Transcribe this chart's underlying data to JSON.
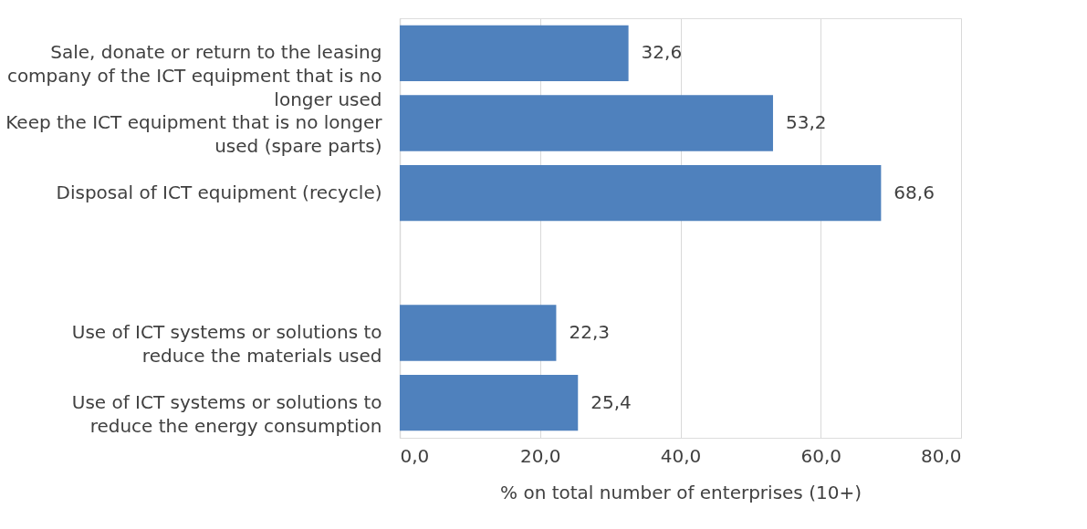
{
  "chart_data": {
    "type": "bar",
    "orientation": "horizontal",
    "xlabel": "% on total number of enterprises (10+)",
    "categories": [
      "Sale, donate or return to the leasing company of the ICT equipment that is no longer used",
      "Keep the ICT equipment that is no longer used (spare parts)",
      "Disposal of ICT equipment (recycle)",
      null,
      "Use of ICT systems or solutions to reduce the materials used",
      "Use of ICT systems or solutions to reduce the energy consumption"
    ],
    "values": [
      32.6,
      53.2,
      68.6,
      null,
      22.3,
      25.4
    ],
    "value_labels": [
      "32,6",
      "53,2",
      "68,6",
      null,
      "22,3",
      "25,4"
    ],
    "color": "#4f81bd",
    "xlim": [
      0,
      80
    ],
    "xticks": [
      {
        "value": 0,
        "label": "0,0"
      },
      {
        "value": 20,
        "label": "20,0"
      },
      {
        "value": 40,
        "label": "40,0"
      },
      {
        "value": 60,
        "label": "60,0"
      },
      {
        "value": 80,
        "label": "80,0"
      }
    ],
    "grid": "x"
  }
}
